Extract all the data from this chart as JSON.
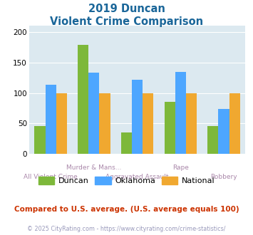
{
  "title_line1": "2019 Duncan",
  "title_line2": "Violent Crime Comparison",
  "categories": [
    "All Violent Crime",
    "Murder & Mans...",
    "Aggravated Assault",
    "Rape",
    "Robbery"
  ],
  "top_xlabels": [
    [
      1,
      "Murder & Mans..."
    ],
    [
      3,
      "Rape"
    ]
  ],
  "bot_xlabels": [
    [
      0,
      "All Violent Crime"
    ],
    [
      2,
      "Aggravated Assault"
    ],
    [
      4,
      "Robbery"
    ]
  ],
  "duncan": [
    46,
    179,
    35,
    85,
    46
  ],
  "oklahoma": [
    114,
    133,
    122,
    135,
    74
  ],
  "national": [
    100,
    100,
    100,
    100,
    100
  ],
  "duncan_color": "#7db83a",
  "oklahoma_color": "#4da6ff",
  "national_color": "#f0a830",
  "ylim": [
    0,
    210
  ],
  "yticks": [
    0,
    50,
    100,
    150,
    200
  ],
  "bg_color": "#dce9f0",
  "title_color": "#1a6699",
  "xlabel_color": "#aa88aa",
  "legend_labels": [
    "Duncan",
    "Oklahoma",
    "National"
  ],
  "footer_text": "Compared to U.S. average. (U.S. average equals 100)",
  "footer_color": "#cc3300",
  "credit_text": "© 2025 CityRating.com - https://www.cityrating.com/crime-statistics/",
  "credit_color": "#9999bb",
  "bar_width": 0.25
}
